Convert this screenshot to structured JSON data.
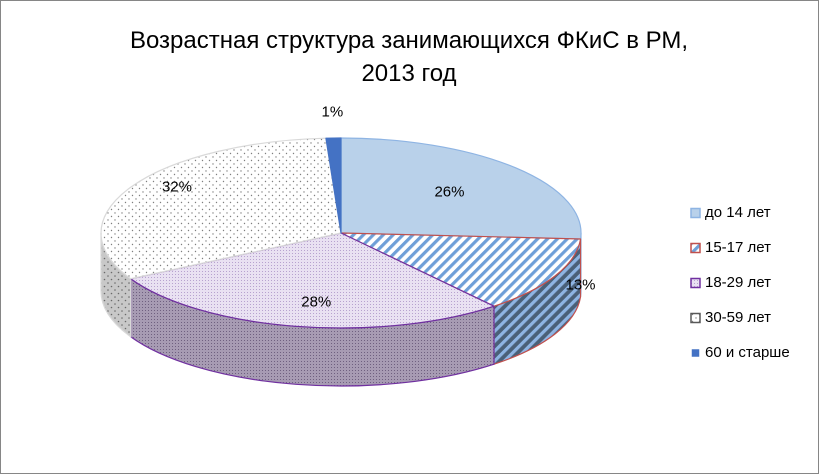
{
  "chart_data": {
    "type": "pie",
    "title_lines": [
      "Возрастная структура  занимающихся ФКиС в РМ,",
      "2013 год"
    ],
    "categories": [
      "до 14 лет",
      "15-17 лет",
      "18-29 лет",
      "30-59 лет",
      "60 и старше"
    ],
    "values": [
      26,
      13,
      28,
      32,
      1
    ],
    "data_labels": [
      "26%",
      "13%",
      "28%",
      "32%",
      "1%"
    ],
    "colors": [
      "#b9d1ea",
      "#8eb4e3",
      "#c9b6dd",
      "#f2f2f2",
      "#4472c4"
    ],
    "edge_colors": [
      "#8eb4e3",
      "#c0504d",
      "#7030a0",
      "#d9d9d9",
      "#4472c4"
    ],
    "legend_position": "right",
    "style": "3d"
  }
}
